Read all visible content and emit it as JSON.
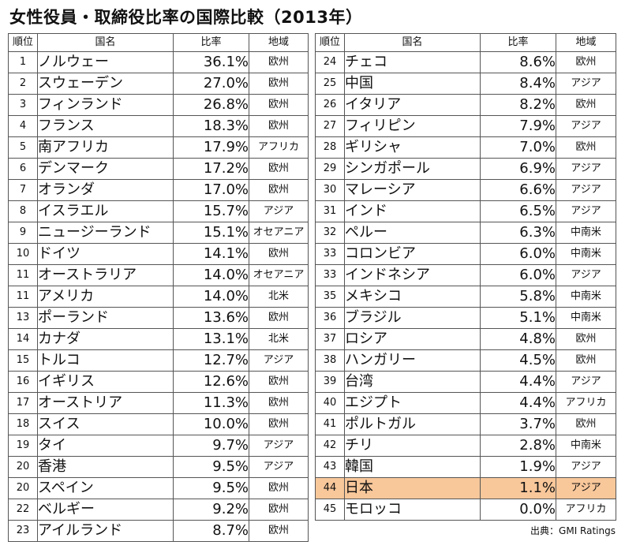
{
  "title": "女性役員・取締役比率の国際比較（2013年）",
  "headers": {
    "rank": "順位",
    "country": "国名",
    "ratio": "比率",
    "region": "地域"
  },
  "left_rows": [
    {
      "rank": "1",
      "country": "ノルウェー",
      "ratio": "36.1%",
      "region": "欧州"
    },
    {
      "rank": "2",
      "country": "スウェーデン",
      "ratio": "27.0%",
      "region": "欧州"
    },
    {
      "rank": "3",
      "country": "フィンランド",
      "ratio": "26.8%",
      "region": "欧州"
    },
    {
      "rank": "4",
      "country": "フランス",
      "ratio": "18.3%",
      "region": "欧州"
    },
    {
      "rank": "5",
      "country": "南アフリカ",
      "ratio": "17.9%",
      "region": "アフリカ"
    },
    {
      "rank": "6",
      "country": "デンマーク",
      "ratio": "17.2%",
      "region": "欧州"
    },
    {
      "rank": "7",
      "country": "オランダ",
      "ratio": "17.0%",
      "region": "欧州"
    },
    {
      "rank": "8",
      "country": "イスラエル",
      "ratio": "15.7%",
      "region": "アジア"
    },
    {
      "rank": "9",
      "country": "ニュージーランド",
      "ratio": "15.1%",
      "region": "オセアニア"
    },
    {
      "rank": "10",
      "country": "ドイツ",
      "ratio": "14.1%",
      "region": "欧州"
    },
    {
      "rank": "11",
      "country": "オーストラリア",
      "ratio": "14.0%",
      "region": "オセアニア"
    },
    {
      "rank": "11",
      "country": "アメリカ",
      "ratio": "14.0%",
      "region": "北米"
    },
    {
      "rank": "13",
      "country": "ポーランド",
      "ratio": "13.6%",
      "region": "欧州"
    },
    {
      "rank": "14",
      "country": "カナダ",
      "ratio": "13.1%",
      "region": "北米"
    },
    {
      "rank": "15",
      "country": "トルコ",
      "ratio": "12.7%",
      "region": "アジア"
    },
    {
      "rank": "16",
      "country": "イギリス",
      "ratio": "12.6%",
      "region": "欧州"
    },
    {
      "rank": "17",
      "country": "オーストリア",
      "ratio": "11.3%",
      "region": "欧州"
    },
    {
      "rank": "18",
      "country": "スイス",
      "ratio": "10.0%",
      "region": "欧州"
    },
    {
      "rank": "19",
      "country": "タイ",
      "ratio": "9.7%",
      "region": "アジア"
    },
    {
      "rank": "20",
      "country": "香港",
      "ratio": "9.5%",
      "region": "アジア"
    },
    {
      "rank": "20",
      "country": "スペイン",
      "ratio": "9.5%",
      "region": "欧州"
    },
    {
      "rank": "22",
      "country": "ベルギー",
      "ratio": "9.2%",
      "region": "欧州"
    },
    {
      "rank": "23",
      "country": "アイルランド",
      "ratio": "8.7%",
      "region": "欧州"
    }
  ],
  "right_rows": [
    {
      "rank": "24",
      "country": "チェコ",
      "ratio": "8.6%",
      "region": "欧州"
    },
    {
      "rank": "25",
      "country": "中国",
      "ratio": "8.4%",
      "region": "アジア"
    },
    {
      "rank": "26",
      "country": "イタリア",
      "ratio": "8.2%",
      "region": "欧州"
    },
    {
      "rank": "27",
      "country": "フィリピン",
      "ratio": "7.9%",
      "region": "アジア"
    },
    {
      "rank": "28",
      "country": "ギリシャ",
      "ratio": "7.0%",
      "region": "欧州"
    },
    {
      "rank": "29",
      "country": "シンガポール",
      "ratio": "6.9%",
      "region": "アジア"
    },
    {
      "rank": "30",
      "country": "マレーシア",
      "ratio": "6.6%",
      "region": "アジア"
    },
    {
      "rank": "31",
      "country": "インド",
      "ratio": "6.5%",
      "region": "アジア"
    },
    {
      "rank": "32",
      "country": "ペルー",
      "ratio": "6.3%",
      "region": "中南米"
    },
    {
      "rank": "33",
      "country": "コロンビア",
      "ratio": "6.0%",
      "region": "中南米"
    },
    {
      "rank": "33",
      "country": "インドネシア",
      "ratio": "6.0%",
      "region": "アジア"
    },
    {
      "rank": "35",
      "country": "メキシコ",
      "ratio": "5.8%",
      "region": "中南米"
    },
    {
      "rank": "36",
      "country": "ブラジル",
      "ratio": "5.1%",
      "region": "中南米"
    },
    {
      "rank": "37",
      "country": "ロシア",
      "ratio": "4.8%",
      "region": "欧州"
    },
    {
      "rank": "38",
      "country": "ハンガリー",
      "ratio": "4.5%",
      "region": "欧州"
    },
    {
      "rank": "39",
      "country": "台湾",
      "ratio": "4.4%",
      "region": "アジア"
    },
    {
      "rank": "40",
      "country": "エジプト",
      "ratio": "4.4%",
      "region": "アフリカ"
    },
    {
      "rank": "41",
      "country": "ポルトガル",
      "ratio": "3.7%",
      "region": "欧州"
    },
    {
      "rank": "42",
      "country": "チリ",
      "ratio": "2.8%",
      "region": "中南米"
    },
    {
      "rank": "43",
      "country": "韓国",
      "ratio": "1.9%",
      "region": "アジア"
    },
    {
      "rank": "44",
      "country": "日本",
      "ratio": "1.1%",
      "region": "アジア",
      "highlight": true
    },
    {
      "rank": "45",
      "country": "モロッコ",
      "ratio": "0.0%",
      "region": "アフリカ"
    }
  ],
  "highlight_color": "#f8c79a",
  "source": "出典：GMI Ratings"
}
